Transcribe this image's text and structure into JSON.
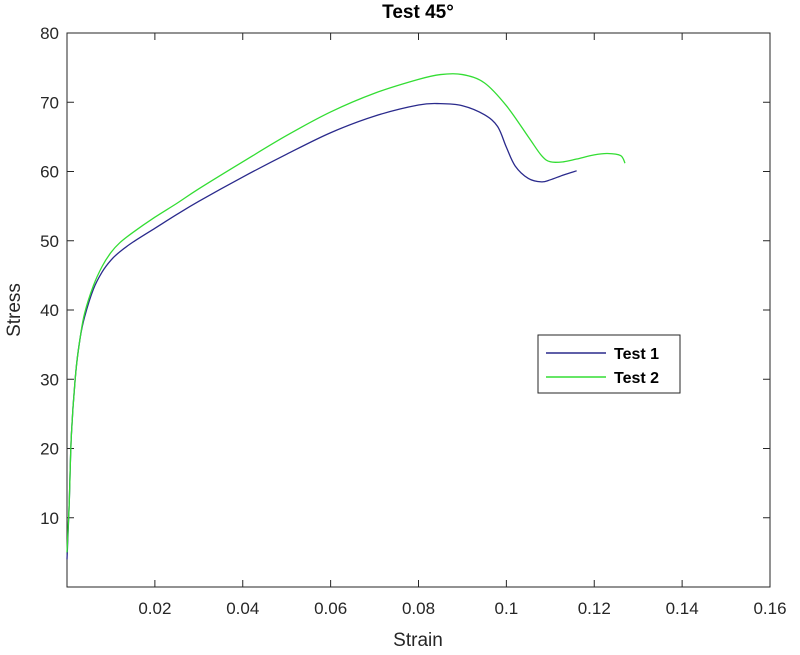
{
  "chart_data": {
    "type": "line",
    "title": "Test 45°",
    "xlabel": "Strain",
    "ylabel": "Stress",
    "xlim": [
      0,
      0.16
    ],
    "ylim": [
      0,
      80
    ],
    "xticks": [
      0.02,
      0.04,
      0.06,
      0.08,
      0.1,
      0.12,
      0.14,
      0.16
    ],
    "xtick_labels": [
      "0.02",
      "0.04",
      "0.06",
      "0.08",
      "0.1",
      "0.12",
      "0.14",
      "0.16"
    ],
    "yticks": [
      10,
      20,
      30,
      40,
      50,
      60,
      70,
      80
    ],
    "ytick_labels": [
      "10",
      "20",
      "30",
      "40",
      "50",
      "60",
      "70",
      "80"
    ],
    "grid": false,
    "legend_position": "right-middle",
    "series": [
      {
        "name": "Test 1",
        "color": "#2a2a8c",
        "x": [
          0,
          0.0005,
          0.001,
          0.002,
          0.003,
          0.004,
          0.006,
          0.008,
          0.01,
          0.012,
          0.015,
          0.02,
          0.025,
          0.03,
          0.04,
          0.05,
          0.06,
          0.07,
          0.08,
          0.085,
          0.09,
          0.095,
          0.098,
          0.1,
          0.102,
          0.105,
          0.108,
          0.11,
          0.113,
          0.116
        ],
        "y": [
          4,
          12,
          22,
          31,
          36,
          39,
          43,
          45.5,
          47.2,
          48.4,
          49.8,
          51.8,
          53.8,
          55.7,
          59.2,
          62.5,
          65.6,
          68.0,
          69.6,
          69.8,
          69.5,
          68.2,
          66.5,
          63.5,
          60.8,
          59.0,
          58.5,
          58.8,
          59.5,
          60.1
        ]
      },
      {
        "name": "Test 2",
        "color": "#33dd33",
        "x": [
          0,
          0.0005,
          0.001,
          0.002,
          0.003,
          0.004,
          0.006,
          0.008,
          0.01,
          0.012,
          0.015,
          0.02,
          0.025,
          0.03,
          0.04,
          0.05,
          0.06,
          0.07,
          0.08,
          0.085,
          0.09,
          0.095,
          0.1,
          0.105,
          0.108,
          0.11,
          0.113,
          0.116,
          0.12,
          0.123,
          0.126,
          0.127
        ],
        "y": [
          5,
          12,
          22,
          31,
          36,
          39.5,
          43.5,
          46.3,
          48.3,
          49.7,
          51.2,
          53.4,
          55.4,
          57.5,
          61.4,
          65.2,
          68.6,
          71.3,
          73.3,
          74.0,
          74.0,
          72.8,
          69.5,
          65.0,
          62.3,
          61.4,
          61.4,
          61.8,
          62.4,
          62.6,
          62.3,
          61.2
        ]
      }
    ]
  }
}
